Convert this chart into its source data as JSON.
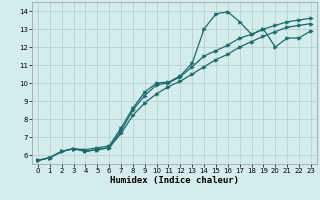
{
  "xlabel": "Humidex (Indice chaleur)",
  "bg_color": "#d4ecec",
  "grid_color": "#b8d0d0",
  "line_color": "#1a6b6b",
  "xlim": [
    -0.5,
    23.5
  ],
  "ylim": [
    5.5,
    14.5
  ],
  "xticks": [
    0,
    1,
    2,
    3,
    4,
    5,
    6,
    7,
    8,
    9,
    10,
    11,
    12,
    13,
    14,
    15,
    16,
    17,
    18,
    19,
    20,
    21,
    22,
    23
  ],
  "yticks": [
    6,
    7,
    8,
    9,
    10,
    11,
    12,
    13,
    14
  ],
  "line1_x": [
    0,
    1,
    2,
    3,
    4,
    5,
    6,
    7,
    8,
    9,
    10,
    11,
    12,
    13,
    14,
    15,
    16,
    17,
    18,
    19,
    20,
    21,
    22,
    23
  ],
  "line1_y": [
    5.7,
    5.85,
    6.2,
    6.35,
    6.3,
    6.4,
    6.5,
    7.5,
    8.6,
    9.5,
    10.0,
    10.05,
    10.4,
    11.1,
    13.0,
    13.85,
    13.95,
    13.4,
    12.7,
    13.0,
    12.0,
    12.5,
    12.5,
    12.9
  ],
  "line2_x": [
    0,
    1,
    2,
    3,
    4,
    5,
    6,
    7,
    8,
    9,
    10,
    11,
    12,
    13,
    14,
    15,
    16,
    17,
    18,
    19,
    20,
    21,
    22,
    23
  ],
  "line2_y": [
    5.7,
    5.85,
    6.2,
    6.35,
    6.2,
    6.3,
    6.4,
    7.35,
    8.5,
    9.3,
    9.9,
    10.0,
    10.35,
    10.9,
    11.5,
    11.8,
    12.1,
    12.5,
    12.7,
    13.0,
    13.2,
    13.4,
    13.5,
    13.6
  ],
  "line3_x": [
    0,
    1,
    2,
    3,
    4,
    5,
    6,
    7,
    8,
    9,
    10,
    11,
    12,
    13,
    14,
    15,
    16,
    17,
    18,
    19,
    20,
    21,
    22,
    23
  ],
  "line3_y": [
    5.7,
    5.85,
    6.2,
    6.35,
    6.2,
    6.3,
    6.4,
    7.2,
    8.2,
    8.9,
    9.4,
    9.8,
    10.1,
    10.5,
    10.9,
    11.3,
    11.6,
    12.0,
    12.3,
    12.6,
    12.85,
    13.1,
    13.2,
    13.3
  ]
}
